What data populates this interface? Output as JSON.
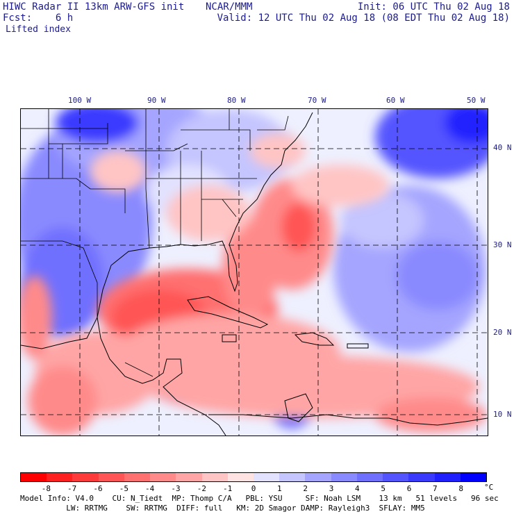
{
  "header": {
    "title": "HIWC Radar II 13km ARW-GFS init",
    "source": "NCAR/MMM",
    "init": "Init: 06 UTC Thu 02 Aug 18",
    "fcst_label": "Fcst:",
    "fcst_value": "6 h",
    "valid": "Valid: 12 UTC Thu 02 Aug 18 (08 EDT Thu 02 Aug 18)",
    "field": "Lifted index"
  },
  "map": {
    "lon_labels": [
      "100 W",
      "90 W",
      "80 W",
      "70 W",
      "60 W",
      "50 W"
    ],
    "lat_labels": [
      "40 N",
      "30 N",
      "20 N",
      "10 N"
    ]
  },
  "colorbar": {
    "unit": "°C",
    "ticks": [
      "-8",
      "-7",
      "-6",
      "-5",
      "-4",
      "-3",
      "-2",
      "-1",
      "0",
      "1",
      "2",
      "3",
      "4",
      "5",
      "6",
      "7",
      "8"
    ],
    "colors": [
      "#ff0000",
      "#ff2020",
      "#ff3a3a",
      "#ff5555",
      "#ff7070",
      "#ff8a8a",
      "#ffa5a5",
      "#ffc5c5",
      "#ffe2e2",
      "#e2e2ff",
      "#c5c5ff",
      "#a5a5ff",
      "#8a8aff",
      "#7070ff",
      "#5555ff",
      "#3a3aff",
      "#2020ff",
      "#0000ff"
    ]
  },
  "footer": {
    "line1": "Model Info: V4.0    CU: N_Tiedt  MP: Thomp C/A   PBL: YSU     SF: Noah LSM    13 km   51 levels   96 sec",
    "line2": "          LW: RRTMG    SW: RRTMG  DIFF: full   KM: 2D Smagor DAMP: Rayleigh3  SFLAY: MM5"
  }
}
